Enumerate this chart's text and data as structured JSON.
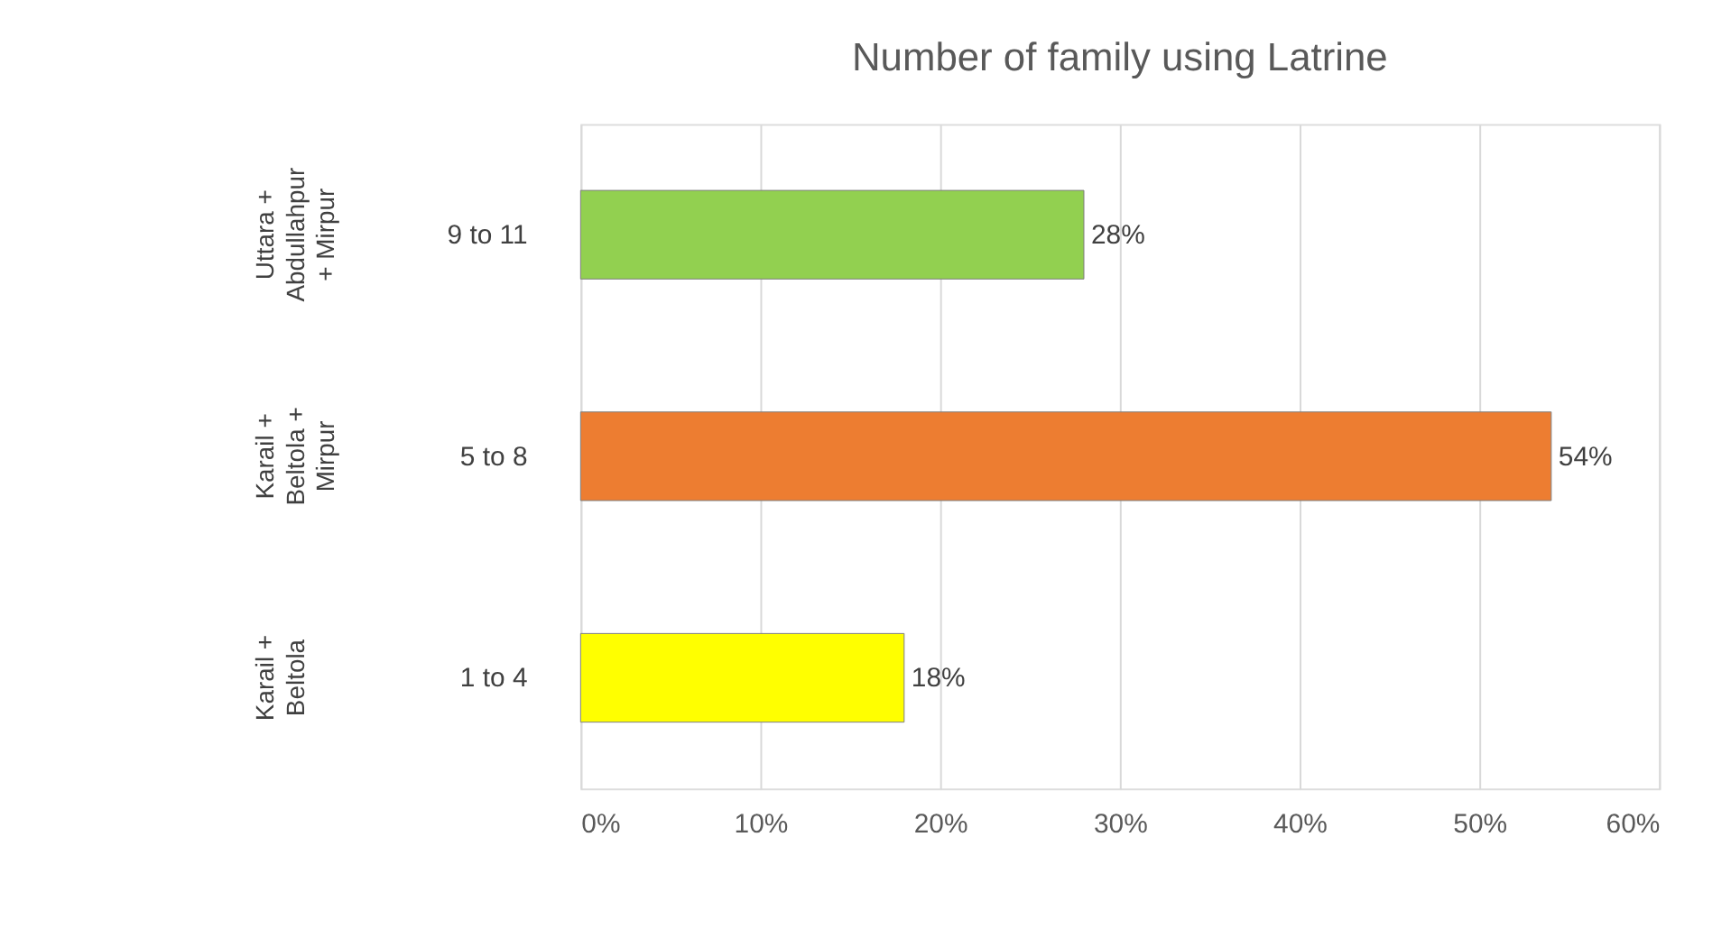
{
  "chart_data": {
    "type": "bar",
    "orientation": "horizontal",
    "title": "Number of family using Latrine",
    "categories": [
      "9 to 11",
      "5 to 8",
      "1 to 4"
    ],
    "values": [
      28,
      54,
      18
    ],
    "colors": [
      "#92d050",
      "#ed7d31",
      "#ffff00"
    ],
    "value_labels": [
      "28%",
      "54%",
      "18%"
    ],
    "annotations": [
      "Uttara + Abdullahpur + Mirpur",
      "Karail + Beltola + Mirpur",
      "Karail + Beltola"
    ],
    "xlim": [
      0,
      60
    ],
    "xticks": [
      {
        "value": 0,
        "label": "0%"
      },
      {
        "value": 10,
        "label": "10%"
      },
      {
        "value": 20,
        "label": "20%"
      },
      {
        "value": 30,
        "label": "30%"
      },
      {
        "value": 40,
        "label": "40%"
      },
      {
        "value": 50,
        "label": "50%"
      },
      {
        "value": 60,
        "label": "60%"
      }
    ],
    "grid": "x"
  }
}
